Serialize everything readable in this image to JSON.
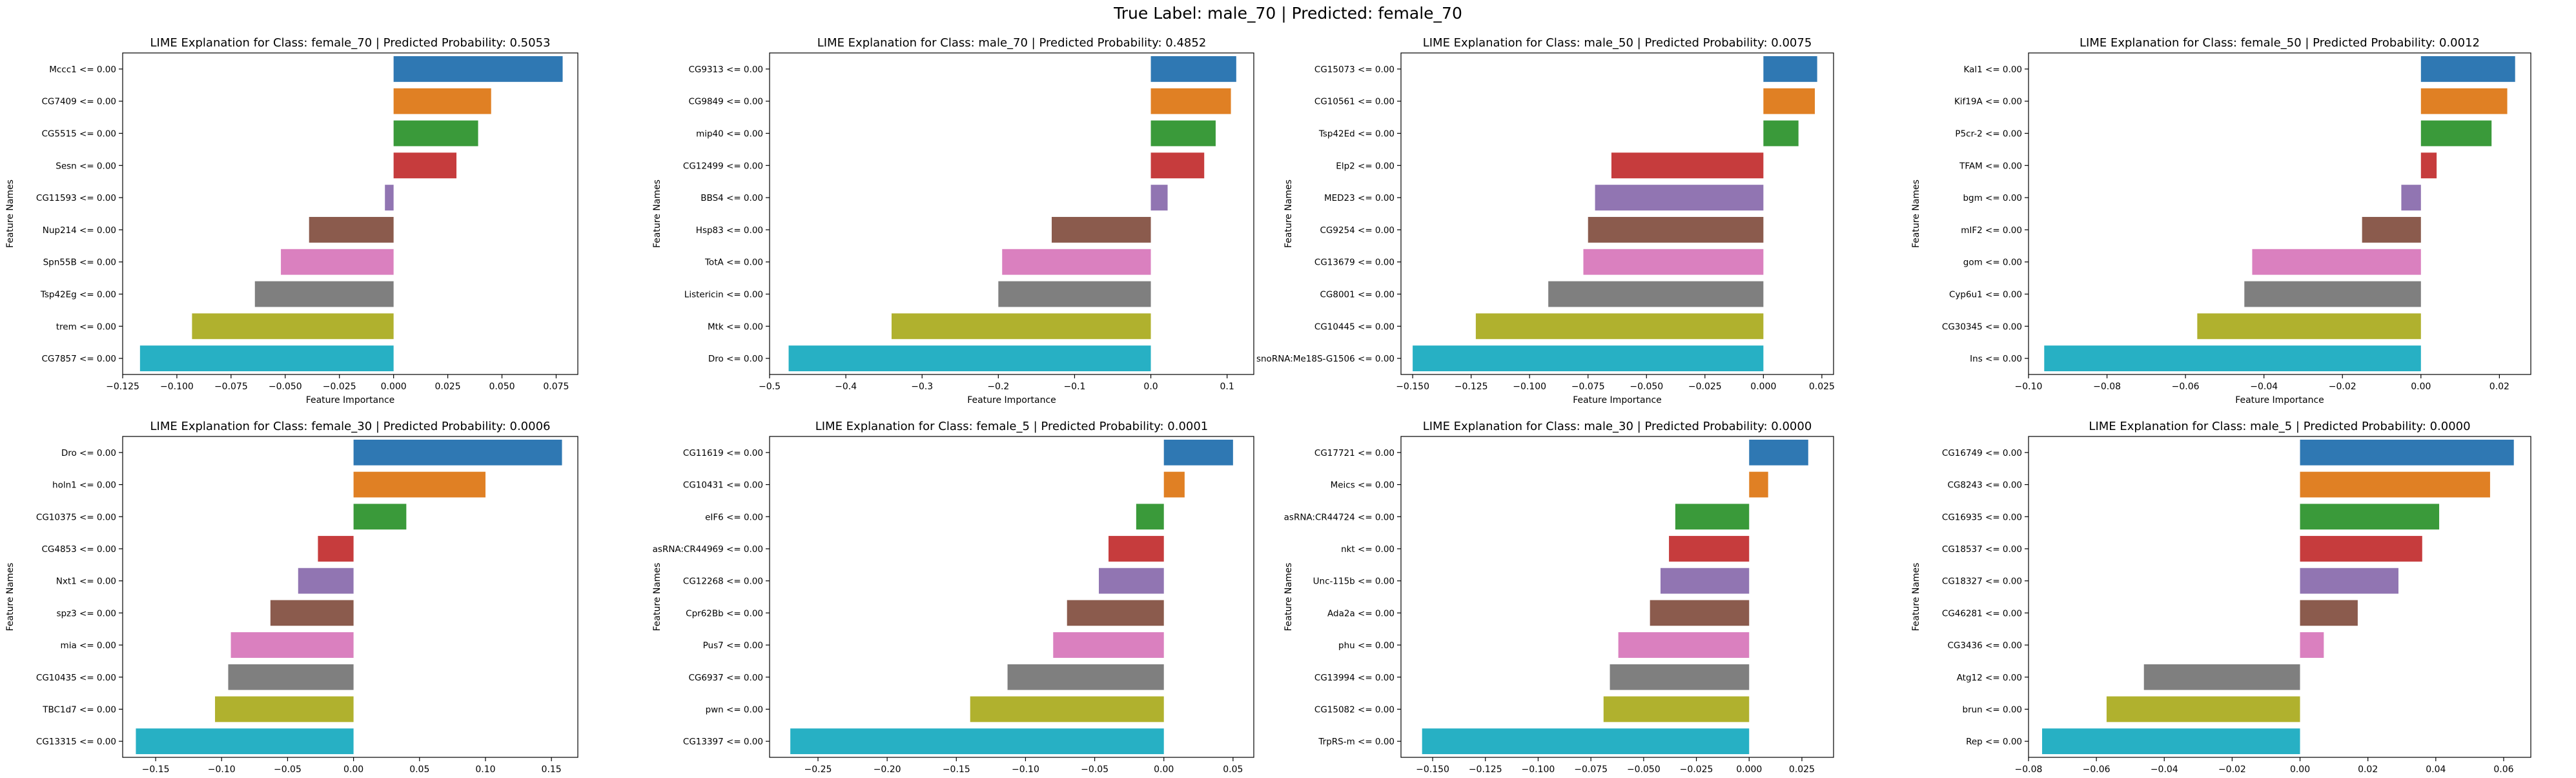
{
  "suptitle": "True Label: male_70 | Predicted: female_70",
  "colors": [
    "#2f78b3",
    "#e08024",
    "#3a9a3a",
    "#c63c3d",
    "#9175b2",
    "#8b5b4d",
    "#da80bf",
    "#7f7f7f",
    "#b0b12e",
    "#27b0c4"
  ],
  "chart_data": [
    {
      "type": "bar",
      "orientation": "horizontal",
      "title": "LIME Explanation for Class: female_70 | Predicted Probability: 0.5053",
      "xlabel": "Feature Importance",
      "ylabel": "Feature Names",
      "categories": [
        "Mccc1 <= 0.00",
        "CG7409 <= 0.00",
        "CG5515 <= 0.00",
        "Sesn <= 0.00",
        "CG11593 <= 0.00",
        "Nup214 <= 0.00",
        "Spn55B <= 0.00",
        "Tsp42Eg <= 0.00",
        "trem <= 0.00",
        "CG7857 <= 0.00"
      ],
      "values": [
        0.078,
        0.045,
        0.039,
        0.029,
        -0.004,
        -0.039,
        -0.052,
        -0.064,
        -0.093,
        -0.117
      ],
      "xlim": [
        -0.125,
        0.085
      ],
      "xticks": [
        -0.125,
        -0.1,
        -0.075,
        -0.05,
        -0.025,
        0.0,
        0.025,
        0.05,
        0.075
      ],
      "xtick_labels": [
        "−0.125",
        "−0.100",
        "−0.075",
        "−0.050",
        "−0.025",
        "0.000",
        "0.025",
        "0.050",
        "0.075"
      ],
      "grid": false
    },
    {
      "type": "bar",
      "orientation": "horizontal",
      "title": "LIME Explanation for Class: male_70 | Predicted Probability: 0.4852",
      "xlabel": "Feature Importance",
      "ylabel": "Feature Names",
      "categories": [
        "CG9313 <= 0.00",
        "CG9849 <= 0.00",
        "mip40 <= 0.00",
        "CG12499 <= 0.00",
        "BBS4 <= 0.00",
        "Hsp83 <= 0.00",
        "TotA <= 0.00",
        "Listericin <= 0.00",
        "Mtk <= 0.00",
        "Dro <= 0.00"
      ],
      "values": [
        0.112,
        0.105,
        0.085,
        0.07,
        0.022,
        -0.13,
        -0.195,
        -0.2,
        -0.34,
        -0.475
      ],
      "xlim": [
        -0.5,
        0.135
      ],
      "xticks": [
        -0.5,
        -0.4,
        -0.3,
        -0.2,
        -0.1,
        0.0,
        0.1
      ],
      "xtick_labels": [
        "−0.5",
        "−0.4",
        "−0.3",
        "−0.2",
        "−0.1",
        "0.0",
        "0.1"
      ],
      "grid": false
    },
    {
      "type": "bar",
      "orientation": "horizontal",
      "title": "LIME Explanation for Class: male_50 | Predicted Probability: 0.0075",
      "xlabel": "Feature Importance",
      "ylabel": "Feature Names",
      "categories": [
        "CG15073 <= 0.00",
        "CG10561 <= 0.00",
        "Tsp42Ed <= 0.00",
        "Elp2 <= 0.00",
        "MED23 <= 0.00",
        "CG9254 <= 0.00",
        "CG13679 <= 0.00",
        "CG8001 <= 0.00",
        "CG10445 <= 0.00",
        "snoRNA:Me18S-G1506 <= 0.00"
      ],
      "values": [
        0.023,
        0.022,
        0.015,
        -0.065,
        -0.072,
        -0.075,
        -0.077,
        -0.092,
        -0.123,
        -0.15
      ],
      "xlim": [
        -0.155,
        0.03
      ],
      "xticks": [
        -0.15,
        -0.125,
        -0.1,
        -0.075,
        -0.05,
        -0.025,
        0.0,
        0.025
      ],
      "xtick_labels": [
        "−0.150",
        "−0.125",
        "−0.100",
        "−0.075",
        "−0.050",
        "−0.025",
        "0.000",
        "0.025"
      ],
      "grid": false
    },
    {
      "type": "bar",
      "orientation": "horizontal",
      "title": "LIME Explanation for Class: female_50 | Predicted Probability: 0.0012",
      "xlabel": "Feature Importance",
      "ylabel": "Feature Names",
      "categories": [
        "Kal1 <= 0.00",
        "Kif19A <= 0.00",
        "P5cr-2 <= 0.00",
        "TFAM <= 0.00",
        "bgm <= 0.00",
        "mIF2 <= 0.00",
        "gom <= 0.00",
        "Cyp6u1 <= 0.00",
        "CG30345 <= 0.00",
        "Ins <= 0.00"
      ],
      "values": [
        0.024,
        0.022,
        0.018,
        0.004,
        -0.005,
        -0.015,
        -0.043,
        -0.045,
        -0.057,
        -0.096
      ],
      "xlim": [
        -0.1,
        0.028
      ],
      "xticks": [
        -0.1,
        -0.08,
        -0.06,
        -0.04,
        -0.02,
        0.0,
        0.02
      ],
      "xtick_labels": [
        "−0.10",
        "−0.08",
        "−0.06",
        "−0.04",
        "−0.02",
        "0.00",
        "0.02"
      ],
      "grid": false
    },
    {
      "type": "bar",
      "orientation": "horizontal",
      "title": "LIME Explanation for Class: female_30 | Predicted Probability: 0.0006",
      "xlabel": "Feature Importance",
      "ylabel": "Feature Names",
      "categories": [
        "Dro <= 0.00",
        "holn1 <= 0.00",
        "CG10375 <= 0.00",
        "CG4853 <= 0.00",
        "Nxt1 <= 0.00",
        "spz3 <= 0.00",
        "mia <= 0.00",
        "CG10435 <= 0.00",
        "TBC1d7 <= 0.00",
        "CG13315 <= 0.00"
      ],
      "values": [
        0.158,
        0.1,
        0.04,
        -0.027,
        -0.042,
        -0.063,
        -0.093,
        -0.095,
        -0.105,
        -0.165
      ],
      "xlim": [
        -0.175,
        0.17
      ],
      "xticks": [
        -0.15,
        -0.1,
        -0.05,
        0.0,
        0.05,
        0.1,
        0.15
      ],
      "xtick_labels": [
        "−0.15",
        "−0.10",
        "−0.05",
        "0.00",
        "0.05",
        "0.10",
        "0.15"
      ],
      "grid": false
    },
    {
      "type": "bar",
      "orientation": "horizontal",
      "title": "LIME Explanation for Class: female_5 | Predicted Probability: 0.0001",
      "xlabel": "Feature Importance",
      "ylabel": "Feature Names",
      "categories": [
        "CG11619 <= 0.00",
        "CG10431 <= 0.00",
        "eIF6 <= 0.00",
        "asRNA:CR44969 <= 0.00",
        "CG12268 <= 0.00",
        "Cpr62Bb <= 0.00",
        "Pus7 <= 0.00",
        "CG6937 <= 0.00",
        "pwn <= 0.00",
        "CG13397 <= 0.00"
      ],
      "values": [
        0.05,
        0.015,
        -0.02,
        -0.04,
        -0.047,
        -0.07,
        -0.08,
        -0.113,
        -0.14,
        -0.27
      ],
      "xlim": [
        -0.285,
        0.065
      ],
      "xticks": [
        -0.25,
        -0.2,
        -0.15,
        -0.1,
        -0.05,
        0.0,
        0.05
      ],
      "xtick_labels": [
        "−0.25",
        "−0.20",
        "−0.15",
        "−0.10",
        "−0.05",
        "0.00",
        "0.05"
      ],
      "grid": false
    },
    {
      "type": "bar",
      "orientation": "horizontal",
      "title": "LIME Explanation for Class: male_30 | Predicted Probability: 0.0000",
      "xlabel": "Feature Importance",
      "ylabel": "Feature Names",
      "categories": [
        "CG17721 <= 0.00",
        "Meics <= 0.00",
        "asRNA:CR44724 <= 0.00",
        "nkt <= 0.00",
        "Unc-115b <= 0.00",
        "Ada2a <= 0.00",
        "phu <= 0.00",
        "CG13994 <= 0.00",
        "CG15082 <= 0.00",
        "TrpRS-m <= 0.00"
      ],
      "values": [
        0.028,
        0.009,
        -0.035,
        -0.038,
        -0.042,
        -0.047,
        -0.062,
        -0.066,
        -0.069,
        -0.155
      ],
      "xlim": [
        -0.165,
        0.04
      ],
      "xticks": [
        -0.15,
        -0.125,
        -0.1,
        -0.075,
        -0.05,
        -0.025,
        0.0,
        0.025
      ],
      "xtick_labels": [
        "−0.150",
        "−0.125",
        "−0.100",
        "−0.075",
        "−0.050",
        "−0.025",
        "0.000",
        "0.025"
      ],
      "grid": false
    },
    {
      "type": "bar",
      "orientation": "horizontal",
      "title": "LIME Explanation for Class: male_5 | Predicted Probability: 0.0000",
      "xlabel": "Feature Importance",
      "ylabel": "Feature Names",
      "categories": [
        "CG16749 <= 0.00",
        "CG8243 <= 0.00",
        "CG16935 <= 0.00",
        "CG18537 <= 0.00",
        "CG18327 <= 0.00",
        "CG46281 <= 0.00",
        "CG3436 <= 0.00",
        "Atg12 <= 0.00",
        "brun <= 0.00",
        "Rep <= 0.00"
      ],
      "values": [
        0.063,
        0.056,
        0.041,
        0.036,
        0.029,
        0.017,
        0.007,
        -0.046,
        -0.057,
        -0.076
      ],
      "xlim": [
        -0.08,
        0.068
      ],
      "xticks": [
        -0.08,
        -0.06,
        -0.04,
        -0.02,
        0.0,
        0.02,
        0.04,
        0.06
      ],
      "xtick_labels": [
        "−0.08",
        "−0.06",
        "−0.04",
        "−0.02",
        "0.00",
        "0.02",
        "0.04",
        "0.06"
      ],
      "grid": false
    }
  ]
}
